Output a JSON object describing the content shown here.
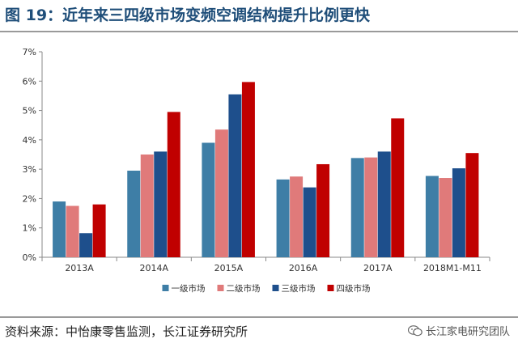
{
  "title": "图 19：近年来三四级市场变频空调结构提升比例更快",
  "source": "资料来源：中怡康零售监测，长江证券研究所",
  "watermark": "长江家电研究团队",
  "watermark_icon": "wechat-icon",
  "chart_data": {
    "type": "bar",
    "categories": [
      "2013A",
      "2014A",
      "2015A",
      "2016A",
      "2017A",
      "2018M1-M11"
    ],
    "series": [
      {
        "name": "一级市场",
        "color": "#3e7ea6",
        "values": [
          1.9,
          2.95,
          3.9,
          2.65,
          3.38,
          2.77
        ]
      },
      {
        "name": "二级市场",
        "color": "#e07a7a",
        "values": [
          1.75,
          3.5,
          4.35,
          2.75,
          3.4,
          2.7
        ]
      },
      {
        "name": "三级市场",
        "color": "#1e4f8c",
        "values": [
          0.82,
          3.6,
          5.55,
          2.38,
          3.6,
          3.03
        ]
      },
      {
        "name": "四级市场",
        "color": "#c00000",
        "values": [
          1.8,
          4.95,
          5.97,
          3.17,
          4.73,
          3.55
        ]
      }
    ],
    "yticks": [
      "0%",
      "1%",
      "2%",
      "3%",
      "4%",
      "5%",
      "6%",
      "7%"
    ],
    "ylim": [
      0,
      7
    ],
    "grid": false,
    "legend": "bottom-center"
  }
}
